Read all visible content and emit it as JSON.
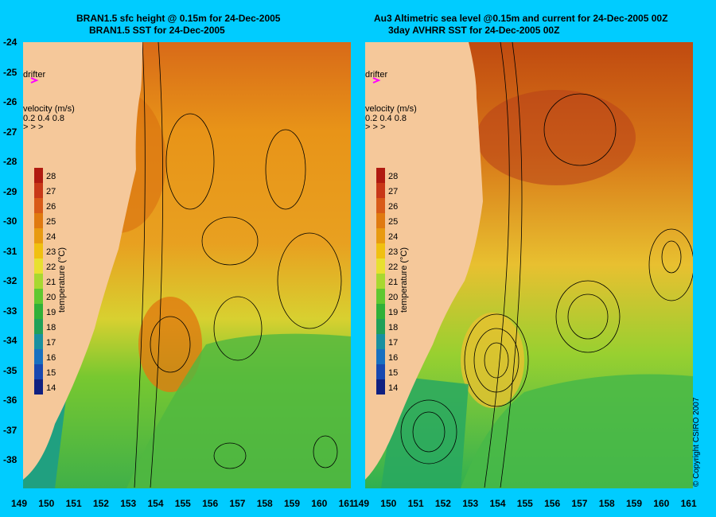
{
  "left_panel": {
    "title_line1": "BRAN1.5 sfc height @ 0.15m for 24-Dec-2005",
    "title_line2": "BRAN1.5 SST for 24-Dec-2005",
    "drifter_label": "drifter",
    "velocity_label": "velocity (m/s)",
    "velocity_scale": "0.2 0.4 0.8"
  },
  "right_panel": {
    "title_line1": "Au3 Altimetric sea level  @0.15m and current for 24-Dec-2005 00Z",
    "title_line2": "3day AVHRR SST for 24-Dec-2005 00Z",
    "drifter_label": "drifter",
    "velocity_label": "velocity (m/s)",
    "velocity_scale": "0.2 0.4 0.8"
  },
  "colorbar": {
    "label": "temperature (°C)",
    "ticks": [
      "28",
      "27",
      "26",
      "25",
      "24",
      "23",
      "22",
      "21",
      "20",
      "19",
      "18",
      "17",
      "16",
      "15",
      "14"
    ],
    "colors": [
      "#b01a10",
      "#c83818",
      "#d85a18",
      "#e07a10",
      "#e89a10",
      "#f0c010",
      "#e8e030",
      "#a8d830",
      "#60c830",
      "#30b038",
      "#20a058",
      "#1890a0",
      "#1870c0",
      "#1848b0",
      "#102080"
    ]
  },
  "axes": {
    "y_ticks": [
      "-24",
      "-25",
      "-26",
      "-27",
      "-28",
      "-29",
      "-30",
      "-31",
      "-32",
      "-33",
      "-34",
      "-35",
      "-36",
      "-37",
      "-38"
    ],
    "x_ticks": [
      "149",
      "150",
      "151",
      "152",
      "153",
      "154",
      "155",
      "156",
      "157",
      "158",
      "159",
      "160",
      "161"
    ]
  },
  "colors": {
    "background": "#00ccff",
    "land": "#f5c89a",
    "drifter": "#ff00ff"
  },
  "copyright": "© Copyright CSIRO 2007"
}
